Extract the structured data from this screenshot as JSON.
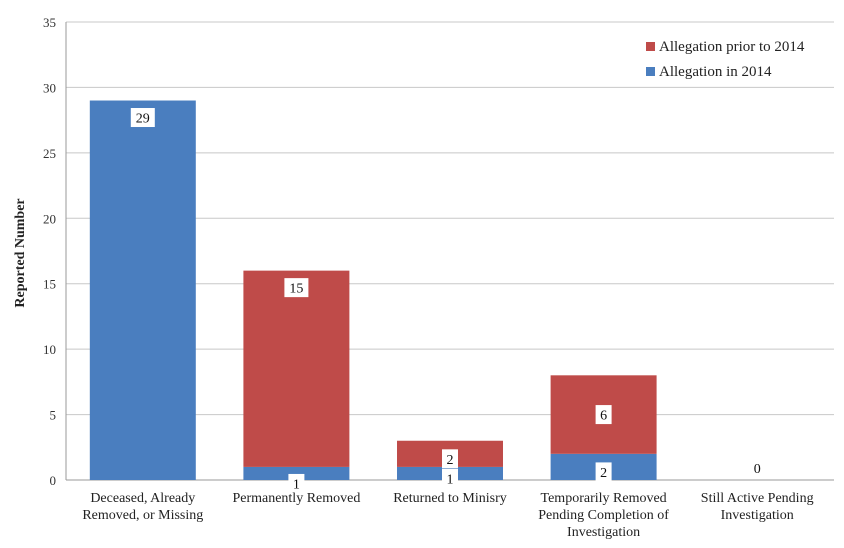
{
  "chart_data": {
    "type": "bar",
    "stacked": true,
    "ylabel": "Reported Number",
    "xlabel": "",
    "ylim": [
      0,
      35
    ],
    "yticks": [
      0,
      5,
      10,
      15,
      20,
      25,
      30,
      35
    ],
    "grid": true,
    "legend_position": "top-right",
    "categories": [
      [
        "Deceased, Already",
        "Removed, or Missing"
      ],
      [
        "Permanently Removed"
      ],
      [
        "Returned to Minisry"
      ],
      [
        "Temporarily Removed",
        "Pending Completion of",
        "Investigation"
      ],
      [
        "Still Active Pending",
        "Investigation"
      ]
    ],
    "series": [
      {
        "name": "Allegation in 2014",
        "color": "#4a7ebf",
        "values": [
          29,
          1,
          1,
          2,
          0
        ]
      },
      {
        "name": "Allegation prior to 2014",
        "color": "#bf4b49",
        "values": [
          0,
          15,
          2,
          6,
          0
        ]
      }
    ],
    "data_labels": [
      {
        "category": 0,
        "series": 0,
        "text": "29"
      },
      {
        "category": 1,
        "series": 1,
        "text": "15"
      },
      {
        "category": 1,
        "series": 0,
        "text": "1"
      },
      {
        "category": 2,
        "series": 1,
        "text": "2"
      },
      {
        "category": 2,
        "series": 0,
        "text": "1"
      },
      {
        "category": 3,
        "series": 1,
        "text": "6"
      },
      {
        "category": 3,
        "series": 0,
        "text": "2"
      },
      {
        "category": 4,
        "series": 0,
        "text": "0"
      }
    ],
    "legend_order": [
      1,
      0
    ]
  }
}
